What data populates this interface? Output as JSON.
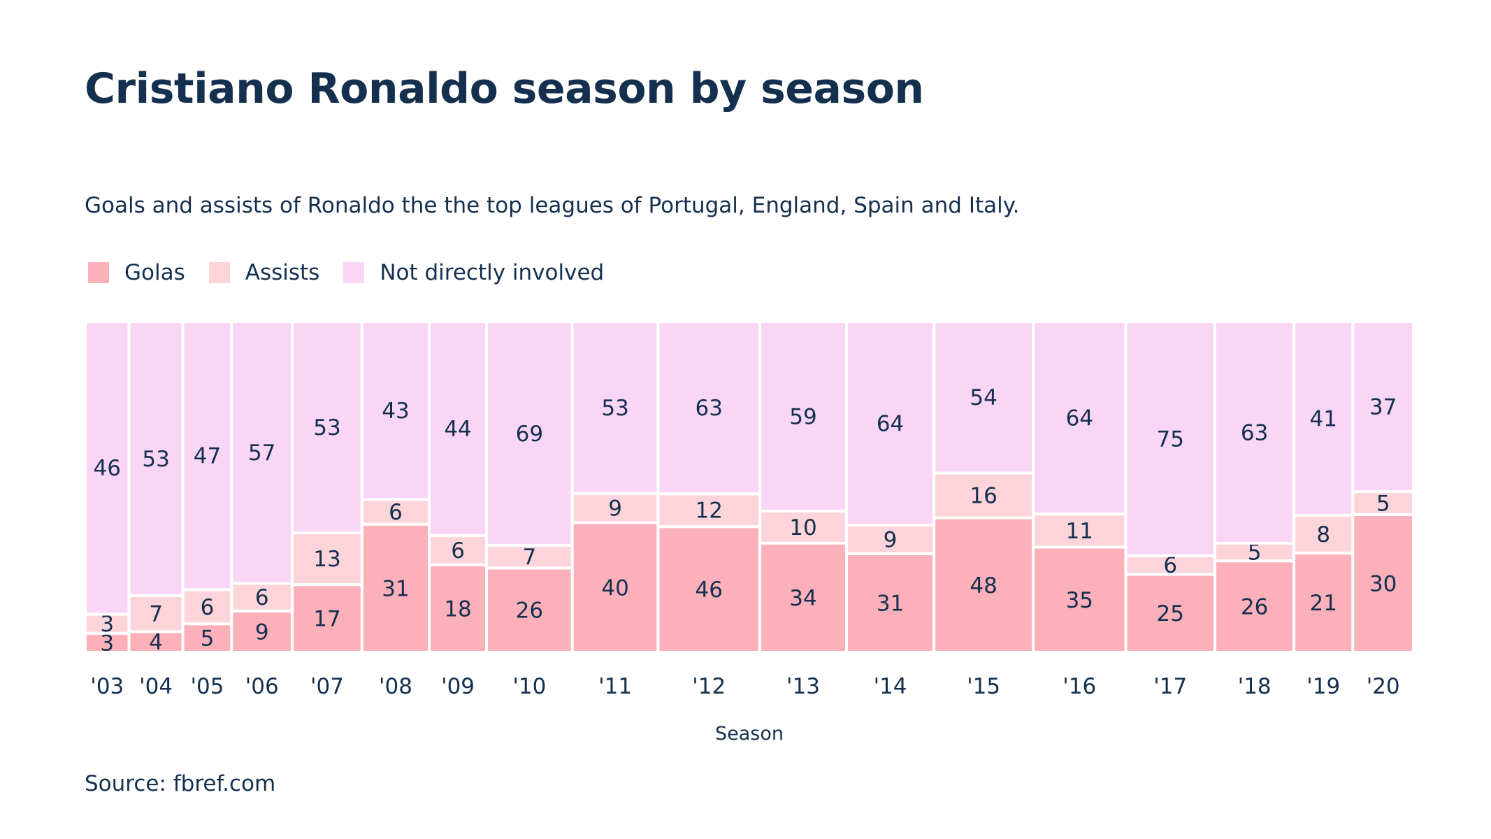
{
  "title": "Cristiano Ronaldo season by season",
  "subtitle": "Goals and assists of Ronaldo the the top leagues of Portugal, England, Spain and Italy.",
  "source": "Source: fbref.com",
  "colors": {
    "goals": "#fcb0ba",
    "assists": "#fdd4da",
    "not_involved": "#f9d5f6",
    "text": "#15304f"
  },
  "chart_data": {
    "type": "bar",
    "variant": "marimekko (100% stacked, bar width proportional to season total)",
    "title": "Cristiano Ronaldo season by season",
    "xlabel": "Season",
    "ylabel": "",
    "legend_position": "top-left",
    "grid": false,
    "categories": [
      "'03",
      "'04",
      "'05",
      "'06",
      "'07",
      "'08",
      "'09",
      "'10",
      "'11",
      "'12",
      "'13",
      "'14",
      "'15",
      "'16",
      "'17",
      "'18",
      "'19",
      "'20"
    ],
    "series": [
      {
        "name": "Golas",
        "values": [
          3,
          4,
          5,
          9,
          17,
          31,
          18,
          26,
          40,
          46,
          34,
          31,
          48,
          35,
          25,
          26,
          21,
          30
        ]
      },
      {
        "name": "Assists",
        "values": [
          3,
          7,
          6,
          6,
          13,
          6,
          6,
          7,
          9,
          12,
          10,
          9,
          16,
          11,
          6,
          5,
          8,
          5
        ]
      },
      {
        "name": "Not directly involved",
        "values": [
          46,
          53,
          47,
          57,
          53,
          43,
          44,
          69,
          53,
          63,
          59,
          64,
          54,
          64,
          75,
          63,
          41,
          37
        ]
      }
    ]
  }
}
